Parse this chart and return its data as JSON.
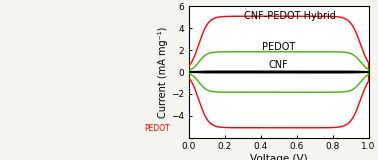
{
  "xlabel": "Voltage (V)",
  "ylabel": "Current (mA mg⁻¹)",
  "xlim": [
    0.0,
    1.0
  ],
  "ylim": [
    -6,
    6
  ],
  "xticks": [
    0.0,
    0.2,
    0.4,
    0.6,
    0.8,
    1.0
  ],
  "yticks": [
    -4,
    -2,
    0,
    2,
    4,
    6
  ],
  "curves": {
    "CNF": {
      "color": "#000000",
      "amplitude": 0.05,
      "label": "CNF"
    },
    "PEDOT": {
      "color": "#3db500",
      "amplitude": 1.85,
      "label": "PEDOT"
    },
    "CNF_PEDOT": {
      "color": "#ff0000",
      "amplitude": 5.1,
      "label": "CNF-PEDOT Hybrid"
    }
  },
  "pedot_label_color": "#ff0000",
  "background_color": "#f5f5f0",
  "plot_bg": "#ffffff",
  "xlabel_fontsize": 7.5,
  "ylabel_fontsize": 7,
  "tick_fontsize": 6.5,
  "label_fontsize": 7,
  "fig_width": 3.78,
  "fig_height": 1.6
}
